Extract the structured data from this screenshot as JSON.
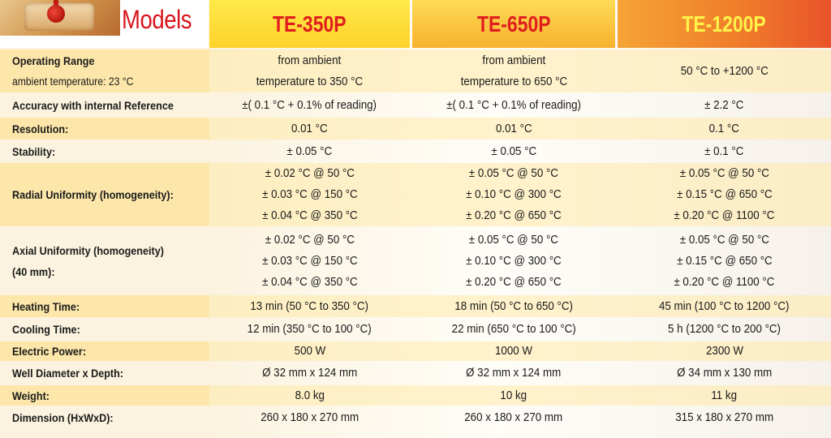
{
  "header": {
    "models_label": "Models",
    "models": [
      "TE-350P",
      "TE-650P",
      "TE-1200P"
    ]
  },
  "rows": [
    {
      "label": [
        "Operating Range"
      ],
      "sublabel": "ambient temperature: 23 °C",
      "values": [
        [
          "from ambient",
          "temperature to 350 °C"
        ],
        [
          "from ambient",
          "temperature to 650 °C"
        ],
        [
          "50 °C to +1200 °C"
        ]
      ]
    },
    {
      "label": [
        "Accuracy with internal Reference"
      ],
      "values": [
        [
          "±( 0.1 °C + 0.1% of reading)"
        ],
        [
          "±( 0.1 °C + 0.1% of reading)"
        ],
        [
          "± 2.2 °C"
        ]
      ]
    },
    {
      "label": [
        "Resolution:"
      ],
      "values": [
        [
          "0.01 °C"
        ],
        [
          "0.01 °C"
        ],
        [
          "0.1 °C"
        ]
      ]
    },
    {
      "label": [
        "Stability:"
      ],
      "values": [
        [
          "± 0.05 °C"
        ],
        [
          "± 0.05 °C"
        ],
        [
          "± 0.1 °C"
        ]
      ]
    },
    {
      "label": [
        "Radial Uniformity (homogeneity):"
      ],
      "values": [
        [
          "± 0.02 °C @ 50 °C",
          "± 0.03 °C @ 150 °C",
          "± 0.04 °C @ 350 °C"
        ],
        [
          "± 0.05 °C @ 50 °C",
          "± 0.10 °C @ 300 °C",
          "± 0.20 °C @ 650 °C"
        ],
        [
          "± 0.05 °C @ 50 °C",
          "± 0.15 °C @ 650 °C",
          "± 0.20 °C @ 1100 °C"
        ]
      ]
    },
    {
      "label": [
        "Axial Uniformity (homogeneity)",
        "(40 mm):"
      ],
      "values": [
        [
          "± 0.02 °C @ 50 °C",
          "± 0.03 °C @ 150 °C",
          "± 0.04 °C @ 350 °C"
        ],
        [
          "± 0.05 °C @ 50 °C",
          "± 0.10 °C @ 300 °C",
          "± 0.20 °C @ 650 °C"
        ],
        [
          "± 0.05 °C @ 50 °C",
          "± 0.15 °C @ 650 °C",
          "± 0.20 °C @ 1100 °C"
        ]
      ]
    },
    {
      "label": [
        "Heating Time:"
      ],
      "values": [
        [
          "13 min (50 °C to 350 °C)"
        ],
        [
          "18 min (50 °C to 650 °C)"
        ],
        [
          "45 min (100 °C to 1200 °C)"
        ]
      ]
    },
    {
      "label": [
        "Cooling Time:"
      ],
      "values": [
        [
          "12 min (350 °C to 100 °C)"
        ],
        [
          "22 min (650 °C to 100 °C)"
        ],
        [
          "5 h (1200 °C to 200 °C)"
        ]
      ]
    },
    {
      "label": [
        "Electric Power:"
      ],
      "values": [
        [
          "500 W"
        ],
        [
          "1000 W"
        ],
        [
          "2300 W"
        ]
      ]
    },
    {
      "label": [
        "Well Diameter x Depth:"
      ],
      "values": [
        [
          "Ø 32 mm x 124 mm"
        ],
        [
          "Ø 32 mm x 124 mm"
        ],
        [
          "Ø 34 mm x 130 mm"
        ]
      ]
    },
    {
      "label": [
        "Weight:"
      ],
      "values": [
        [
          "8.0 kg"
        ],
        [
          "10 kg"
        ],
        [
          "11 kg"
        ]
      ]
    },
    {
      "label": [
        "Dimension (HxWxD):"
      ],
      "values": [
        [
          "260 x 180 x 270 mm"
        ],
        [
          "260 x 180 x 270 mm"
        ],
        [
          "315 x 180 x 270 mm"
        ]
      ]
    }
  ]
}
